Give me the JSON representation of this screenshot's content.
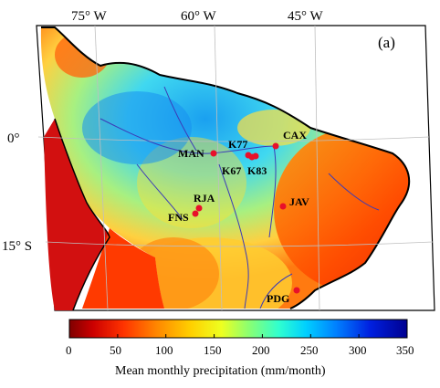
{
  "panel_label": "(a)",
  "longitude_labels": [
    {
      "text": "75° W"
    },
    {
      "text": "60° W"
    },
    {
      "text": "45° W"
    }
  ],
  "latitude_labels": [
    {
      "text": "0°"
    },
    {
      "text": "15° S"
    }
  ],
  "sites": [
    {
      "name": "MAN"
    },
    {
      "name": "K77"
    },
    {
      "name": "K67"
    },
    {
      "name": "K83"
    },
    {
      "name": "CAX"
    },
    {
      "name": "RJA"
    },
    {
      "name": "FNS"
    },
    {
      "name": "JAV"
    },
    {
      "name": "PDG"
    }
  ],
  "colorbar": {
    "title": "Mean monthly precipitation (mm/month)",
    "min": 0,
    "max": 350,
    "ticks": [
      "0",
      "50",
      "100",
      "150",
      "200",
      "250",
      "300",
      "350"
    ]
  },
  "colors": {
    "site_marker": "#e8102a",
    "rivers": "#3b3bb8",
    "ocean": "#ffffff",
    "coast": "#000000"
  }
}
